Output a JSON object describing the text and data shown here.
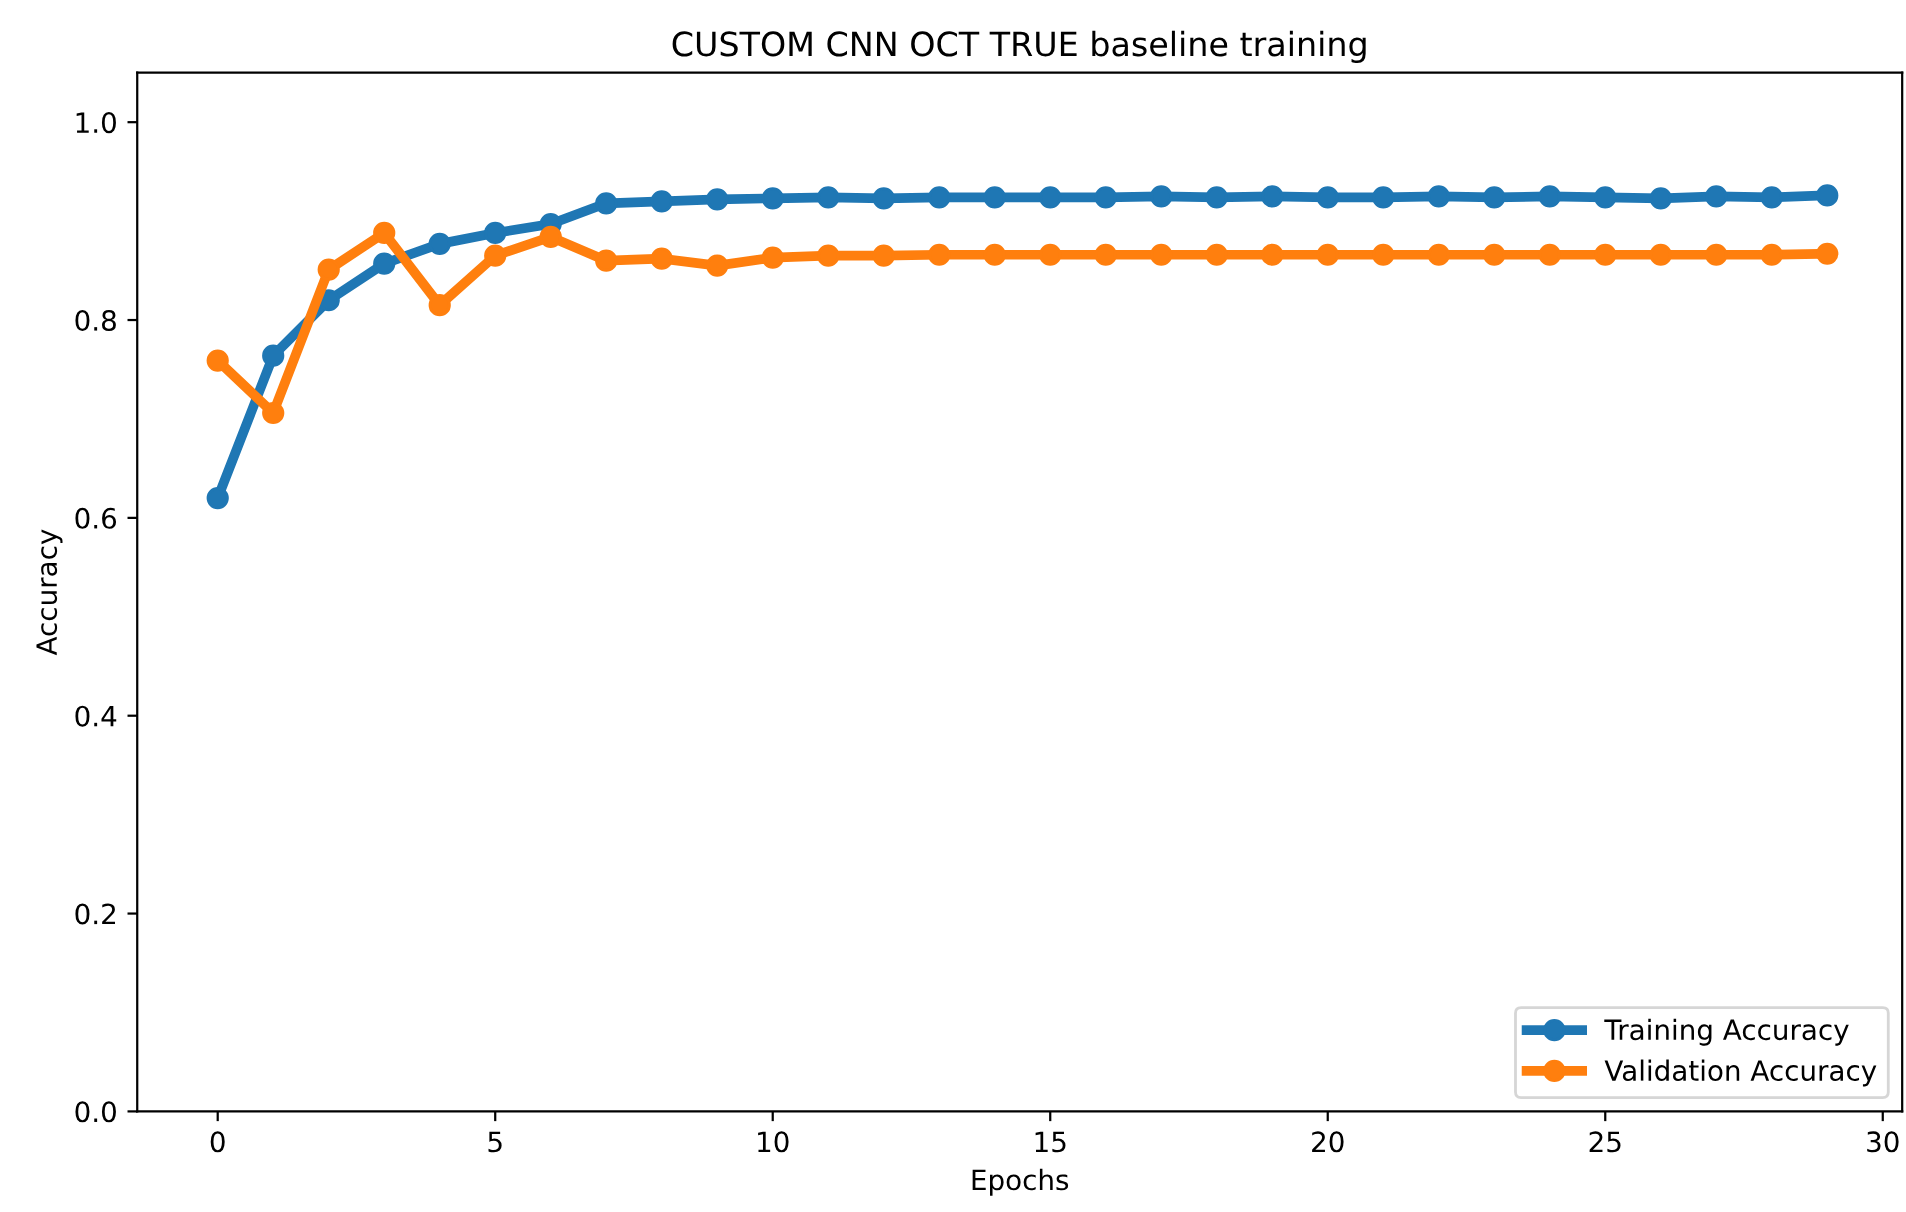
{
  "chart_data": {
    "type": "line",
    "title": "CUSTOM CNN OCT TRUE baseline training",
    "xlabel": "Epochs",
    "ylabel": "Accuracy",
    "x": [
      0,
      1,
      2,
      3,
      4,
      5,
      6,
      7,
      8,
      9,
      10,
      11,
      12,
      13,
      14,
      15,
      16,
      17,
      18,
      19,
      20,
      21,
      22,
      23,
      24,
      25,
      26,
      27,
      28,
      29
    ],
    "series": [
      {
        "name": "Training Accuracy",
        "color": "#1f77b4",
        "values": [
          0.62,
          0.764,
          0.82,
          0.857,
          0.877,
          0.888,
          0.897,
          0.918,
          0.92,
          0.922,
          0.923,
          0.924,
          0.923,
          0.924,
          0.924,
          0.924,
          0.924,
          0.925,
          0.924,
          0.925,
          0.924,
          0.924,
          0.925,
          0.924,
          0.925,
          0.924,
          0.923,
          0.925,
          0.924,
          0.926
        ]
      },
      {
        "name": "Validation Accuracy",
        "color": "#ff7f0e",
        "values": [
          0.759,
          0.706,
          0.851,
          0.888,
          0.815,
          0.865,
          0.884,
          0.86,
          0.862,
          0.855,
          0.863,
          0.865,
          0.865,
          0.866,
          0.866,
          0.866,
          0.866,
          0.866,
          0.866,
          0.866,
          0.866,
          0.866,
          0.866,
          0.866,
          0.866,
          0.866,
          0.866,
          0.866,
          0.866,
          0.867
        ]
      }
    ],
    "xlim": [
      -1.45,
      30.35
    ],
    "ylim": [
      0,
      1.05
    ],
    "xticks": [
      0,
      5,
      10,
      15,
      20,
      25,
      30
    ],
    "yticks": [
      {
        "value": 0,
        "label": "0.0"
      },
      0.2,
      0.4,
      0.6,
      0.8,
      {
        "value": 1,
        "label": "1.0"
      }
    ],
    "marker": "circle",
    "line_style": "solid",
    "legend": "bottom right",
    "grid": false
  }
}
